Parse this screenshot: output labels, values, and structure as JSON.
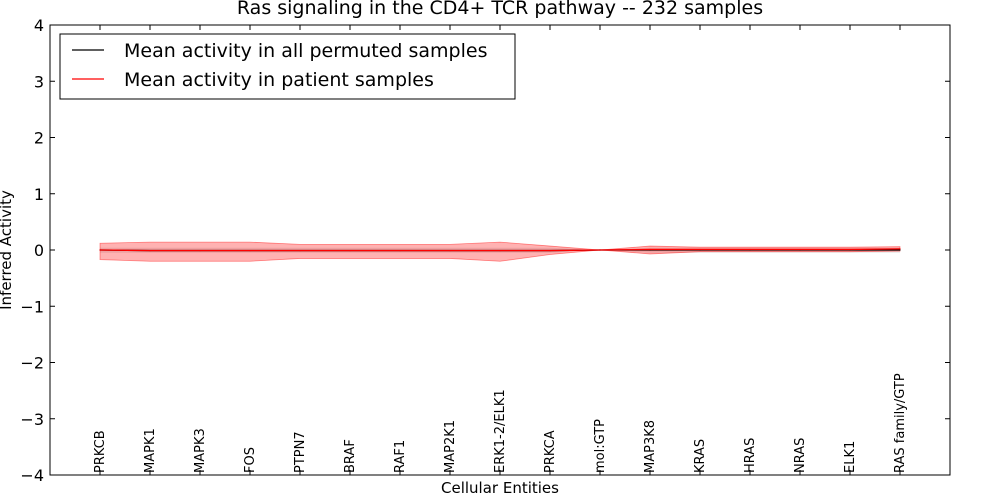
{
  "chart_data": {
    "type": "line",
    "title": "Ras signaling in the CD4+ TCR pathway -- 232 samples",
    "xlabel": "Cellular Entities",
    "ylabel": "Inferred Activity",
    "ylim": [
      -4,
      4
    ],
    "yticks": [
      4,
      3,
      2,
      1,
      0,
      -1,
      -2,
      -3,
      -4
    ],
    "ytick_labels": [
      "4",
      "3",
      "2",
      "1",
      "0",
      "−1",
      "−2",
      "−3",
      "−4"
    ],
    "grid": false,
    "legend_position": "top-left",
    "categories": [
      "PRKCB",
      "MAPK1",
      "MAPK3",
      "FOS",
      "PTPN7",
      "BRAF",
      "RAF1",
      "MAP2K1",
      "ERK1-2/ELK1",
      "PRKCA",
      "mol:GTP",
      "MAP3K8",
      "KRAS",
      "HRAS",
      "NRAS",
      "ELK1",
      "RAS family/GTP"
    ],
    "series": [
      {
        "name": "Mean activity in all permuted samples",
        "color": "#000000",
        "values": [
          0.0,
          -0.01,
          -0.01,
          -0.01,
          -0.01,
          -0.01,
          -0.01,
          -0.01,
          -0.01,
          -0.01,
          0.0,
          0.0,
          0.0,
          0.0,
          0.0,
          0.0,
          0.0
        ],
        "band_lower": [
          -0.05,
          -0.05,
          -0.05,
          -0.05,
          -0.05,
          -0.05,
          -0.05,
          -0.05,
          -0.05,
          -0.05,
          0.0,
          -0.05,
          -0.05,
          -0.05,
          -0.05,
          -0.05,
          -0.05
        ],
        "band_upper": [
          0.04,
          0.04,
          0.04,
          0.04,
          0.04,
          0.04,
          0.04,
          0.04,
          0.04,
          0.04,
          0.0,
          0.04,
          0.04,
          0.04,
          0.04,
          0.04,
          0.04
        ],
        "band_color": "#bbbbbb"
      },
      {
        "name": "Mean activity in patient samples",
        "color": "#ff0000",
        "values": [
          0.0,
          -0.01,
          -0.01,
          -0.01,
          -0.01,
          -0.01,
          -0.01,
          -0.01,
          -0.01,
          -0.01,
          0.0,
          0.01,
          0.01,
          0.01,
          0.01,
          0.01,
          0.02
        ],
        "band_lower": [
          -0.17,
          -0.2,
          -0.2,
          -0.2,
          -0.15,
          -0.15,
          -0.15,
          -0.15,
          -0.2,
          -0.08,
          0.0,
          -0.07,
          -0.03,
          -0.03,
          -0.03,
          -0.03,
          -0.02
        ],
        "band_upper": [
          0.12,
          0.14,
          0.14,
          0.14,
          0.1,
          0.1,
          0.1,
          0.1,
          0.14,
          0.07,
          0.0,
          0.07,
          0.05,
          0.05,
          0.05,
          0.05,
          0.06
        ],
        "band_color": "#ff0000"
      }
    ]
  }
}
